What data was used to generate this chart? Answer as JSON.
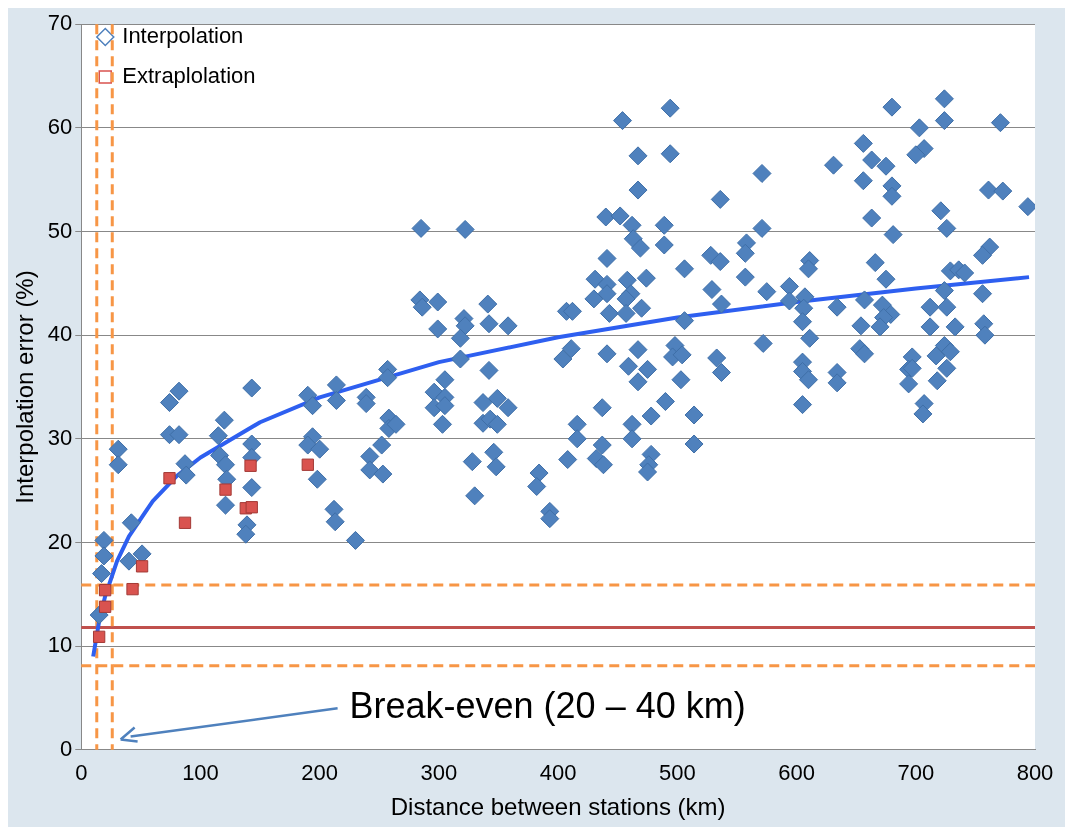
{
  "chart_data": {
    "type": "scatter",
    "xlabel": "Distance between stations (km)",
    "ylabel": "Interpolation error (%)",
    "xlim": [
      0,
      800
    ],
    "ylim": [
      0,
      70
    ],
    "xticks": [
      0,
      100,
      200,
      300,
      400,
      500,
      600,
      700,
      800
    ],
    "yticks": [
      0,
      10,
      20,
      30,
      40,
      50,
      60,
      70
    ],
    "grid": "y",
    "legend": "top left",
    "annotations": [
      "Break-even (20 – 40 km)"
    ],
    "ref_lines": [
      {
        "axis": "y",
        "value": 11.8,
        "color": "#c0504d",
        "line_style": "solid"
      },
      {
        "axis": "y",
        "value": 15.9,
        "color": "#f79646",
        "line_style": "dashed"
      },
      {
        "axis": "y",
        "value": 8.1,
        "color": "#f79646",
        "line_style": "dashed"
      },
      {
        "axis": "x",
        "value": 13,
        "color": "#f79646",
        "line_style": "dashed"
      },
      {
        "axis": "x",
        "value": 26,
        "color": "#f79646",
        "line_style": "dashed"
      }
    ],
    "series": [
      {
        "name": "Interpolation",
        "marker": "diamond",
        "color": "#4f81bd",
        "x": [
          19,
          19,
          17,
          15,
          42,
          40,
          51,
          31,
          31,
          74,
          82,
          74,
          82,
          87,
          88,
          120,
          115,
          116,
          121,
          122,
          121,
          139,
          138,
          143,
          143,
          143,
          143,
          190,
          194,
          194,
          190,
          200,
          198,
          214,
          214,
          212,
          213,
          230,
          239,
          239,
          257,
          257,
          258,
          258,
          252,
          242,
          242,
          253,
          264,
          285,
          322,
          454,
          494,
          467,
          494,
          467,
          440,
          452,
          462,
          489,
          463,
          469,
          489,
          441,
          506,
          431,
          458,
          474,
          441,
          430,
          441,
          461,
          457,
          443,
          457,
          470,
          407,
          412,
          506,
          284,
          286,
          299,
          299,
          321,
          322,
          318,
          341,
          342,
          358,
          318,
          342,
          305,
          296,
          305,
          296,
          305,
          303,
          337,
          349,
          358,
          337,
          343,
          349,
          328,
          346,
          348,
          330,
          384,
          382,
          404,
          411,
          441,
          467,
          459,
          475,
          467,
          498,
          496,
          504,
          503,
          490,
          478,
          437,
          416,
          416,
          462,
          462,
          514,
          514,
          408,
          437,
          432,
          438,
          478,
          476,
          475,
          393,
          393,
          680,
          724,
          724,
          703,
          771,
          656,
          707,
          700,
          663,
          675,
          631,
          571,
          656,
          680,
          680,
          536,
          761,
          773,
          794,
          721,
          663,
          726,
          571,
          681,
          528,
          536,
          558,
          557,
          611,
          610,
          557,
          666,
          675,
          762,
          756,
          729,
          736,
          741,
          529,
          537,
          575,
          594,
          594,
          607,
          606,
          634,
          657,
          724,
          756,
          672,
          679,
          673,
          712,
          726,
          605,
          654,
          670,
          712,
          733,
          757,
          758,
          611,
          572,
          533,
          537,
          653,
          657,
          605,
          605,
          610,
          634,
          634,
          697,
          694,
          697,
          694,
          717,
          724,
          729,
          726,
          718,
          605,
          707,
          706
        ],
        "values": [
          20.2,
          18.7,
          17.0,
          13.0,
          21.9,
          18.2,
          18.9,
          29.0,
          27.5,
          33.5,
          34.6,
          30.4,
          30.4,
          27.6,
          26.5,
          31.8,
          30.3,
          28.4,
          27.5,
          26.1,
          23.6,
          21.7,
          20.8,
          34.9,
          29.5,
          28.2,
          25.3,
          34.2,
          33.2,
          30.2,
          29.4,
          29.0,
          26.1,
          35.2,
          33.7,
          23.2,
          22.0,
          20.2,
          34.0,
          33.4,
          36.7,
          35.9,
          32.0,
          31.0,
          29.4,
          28.3,
          27.0,
          26.6,
          31.4,
          50.3,
          50.2,
          60.7,
          61.9,
          57.3,
          57.5,
          54.0,
          51.4,
          51.5,
          50.6,
          50.6,
          49.3,
          48.4,
          48.7,
          47.4,
          46.4,
          45.4,
          45.3,
          45.5,
          44.9,
          43.5,
          44.0,
          44.0,
          43.5,
          42.1,
          42.1,
          42.6,
          42.3,
          42.3,
          41.4,
          43.4,
          42.7,
          43.2,
          40.6,
          41.6,
          40.9,
          39.7,
          43.0,
          41.1,
          40.9,
          37.7,
          36.6,
          35.7,
          34.5,
          34.0,
          33.0,
          33.2,
          31.4,
          33.5,
          33.9,
          33.0,
          31.5,
          31.9,
          31.4,
          27.8,
          28.7,
          27.3,
          24.5,
          26.7,
          25.4,
          37.7,
          38.7,
          38.2,
          38.6,
          37.0,
          36.7,
          35.5,
          39.0,
          37.9,
          38.1,
          35.7,
          33.6,
          32.2,
          33.0,
          31.4,
          30.0,
          31.4,
          30.0,
          32.3,
          29.5,
          28.0,
          29.4,
          28.1,
          27.5,
          28.5,
          27.5,
          26.8,
          23.0,
          22.3,
          62.0,
          62.8,
          60.7,
          60.0,
          60.5,
          58.5,
          58.0,
          57.4,
          56.9,
          56.3,
          56.4,
          55.6,
          54.9,
          54.4,
          53.4,
          53.1,
          54.0,
          53.9,
          52.4,
          52.0,
          51.3,
          50.3,
          50.3,
          49.7,
          47.7,
          47.1,
          48.9,
          47.9,
          47.2,
          46.4,
          45.6,
          47.0,
          45.4,
          48.5,
          47.7,
          46.2,
          46.3,
          46.0,
          44.4,
          43.0,
          44.2,
          44.7,
          43.3,
          43.7,
          42.6,
          42.7,
          43.4,
          44.3,
          44.0,
          42.9,
          42.0,
          41.7,
          42.7,
          42.7,
          41.3,
          40.9,
          40.8,
          40.8,
          40.8,
          41.1,
          40.0,
          39.7,
          39.2,
          37.8,
          36.4,
          38.7,
          38.2,
          37.4,
          36.5,
          35.7,
          36.4,
          35.4,
          37.9,
          36.7,
          36.8,
          35.3,
          38.0,
          39.0,
          38.4,
          36.8,
          35.6,
          33.3,
          33.4,
          32.4
        ]
      },
      {
        "name": "Extraplolation",
        "marker": "square",
        "color": "#d9534f",
        "x": [
          15,
          20,
          20,
          43,
          51,
          87,
          74,
          121,
          142,
          138,
          143,
          190
        ],
        "values": [
          10.9,
          13.8,
          15.4,
          15.5,
          17.7,
          21.9,
          26.2,
          25.1,
          27.4,
          23.3,
          23.4,
          27.5
        ]
      },
      {
        "type": "line",
        "marker": "none",
        "line_style": "solid",
        "color": "#2e5ff0",
        "x": [
          10,
          15,
          20,
          30,
          40,
          60,
          80,
          100,
          150,
          200,
          300,
          400,
          500,
          600,
          700,
          795
        ],
        "values": [
          9.0,
          12.4,
          14.8,
          18.2,
          20.6,
          24.0,
          26.4,
          28.2,
          31.6,
          34.0,
          37.4,
          39.8,
          41.7,
          43.2,
          44.5,
          45.6
        ]
      }
    ]
  }
}
